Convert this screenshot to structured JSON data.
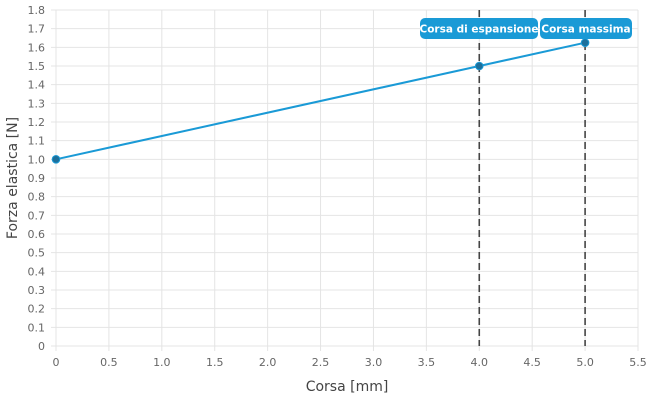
{
  "chart_data": {
    "type": "line",
    "xlabel": "Corsa [mm]",
    "ylabel": "Forza elastica [N]",
    "xlim": [
      0,
      5.5
    ],
    "ylim": [
      0,
      1.8
    ],
    "x_ticks": [
      "0",
      "0.5",
      "1.0",
      "1.5",
      "2.0",
      "2.5",
      "3.0",
      "3.5",
      "4.0",
      "4.5",
      "5.0",
      "5.5"
    ],
    "y_ticks": [
      "0",
      "0.1",
      "0.2",
      "0.3",
      "0.4",
      "0.5",
      "0.6",
      "0.7",
      "0.8",
      "0.9",
      "1.0",
      "1.1",
      "1.2",
      "1.3",
      "1.4",
      "1.5",
      "1.6",
      "1.7",
      "1.8"
    ],
    "grid": true,
    "line_color": "#1a9ad6",
    "marker_color": "#444444",
    "series": [
      {
        "points": [
          {
            "x": 0,
            "y": 1.0
          },
          {
            "x": 4.0,
            "y": 1.5
          },
          {
            "x": 5.0,
            "y": 1.625
          }
        ]
      }
    ],
    "markers": [
      {
        "x": 4.0,
        "label": "Corsa di espansione"
      },
      {
        "x": 5.0,
        "label": "Corsa massima"
      }
    ]
  }
}
